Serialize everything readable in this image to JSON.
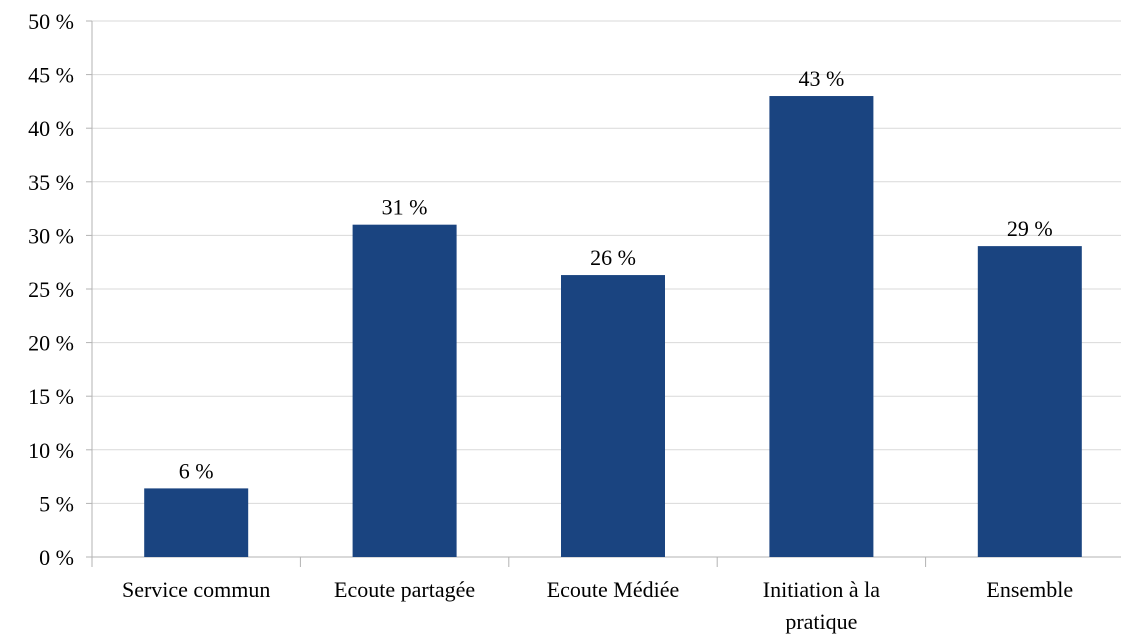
{
  "chart_data": {
    "type": "bar",
    "categories": [
      [
        "Service commun"
      ],
      [
        "Ecoute partagée"
      ],
      [
        "Ecoute Médiée"
      ],
      [
        "Initiation à la",
        "pratique"
      ],
      [
        "Ensemble"
      ]
    ],
    "values": [
      6.4,
      31,
      26.3,
      43,
      29
    ],
    "data_labels": [
      "6 %",
      "31 %",
      "26 %",
      "43 %",
      "29 %"
    ],
    "y_ticks": [
      "0 %",
      "5 %",
      "10 %",
      "15 %",
      "20 %",
      "25 %",
      "30 %",
      "35 %",
      "40 %",
      "45 %",
      "50 %"
    ],
    "ylim": [
      0,
      50
    ],
    "y_step": 5,
    "grid": true,
    "bar_color": "#1a4480",
    "title": "",
    "xlabel": "",
    "ylabel": ""
  }
}
